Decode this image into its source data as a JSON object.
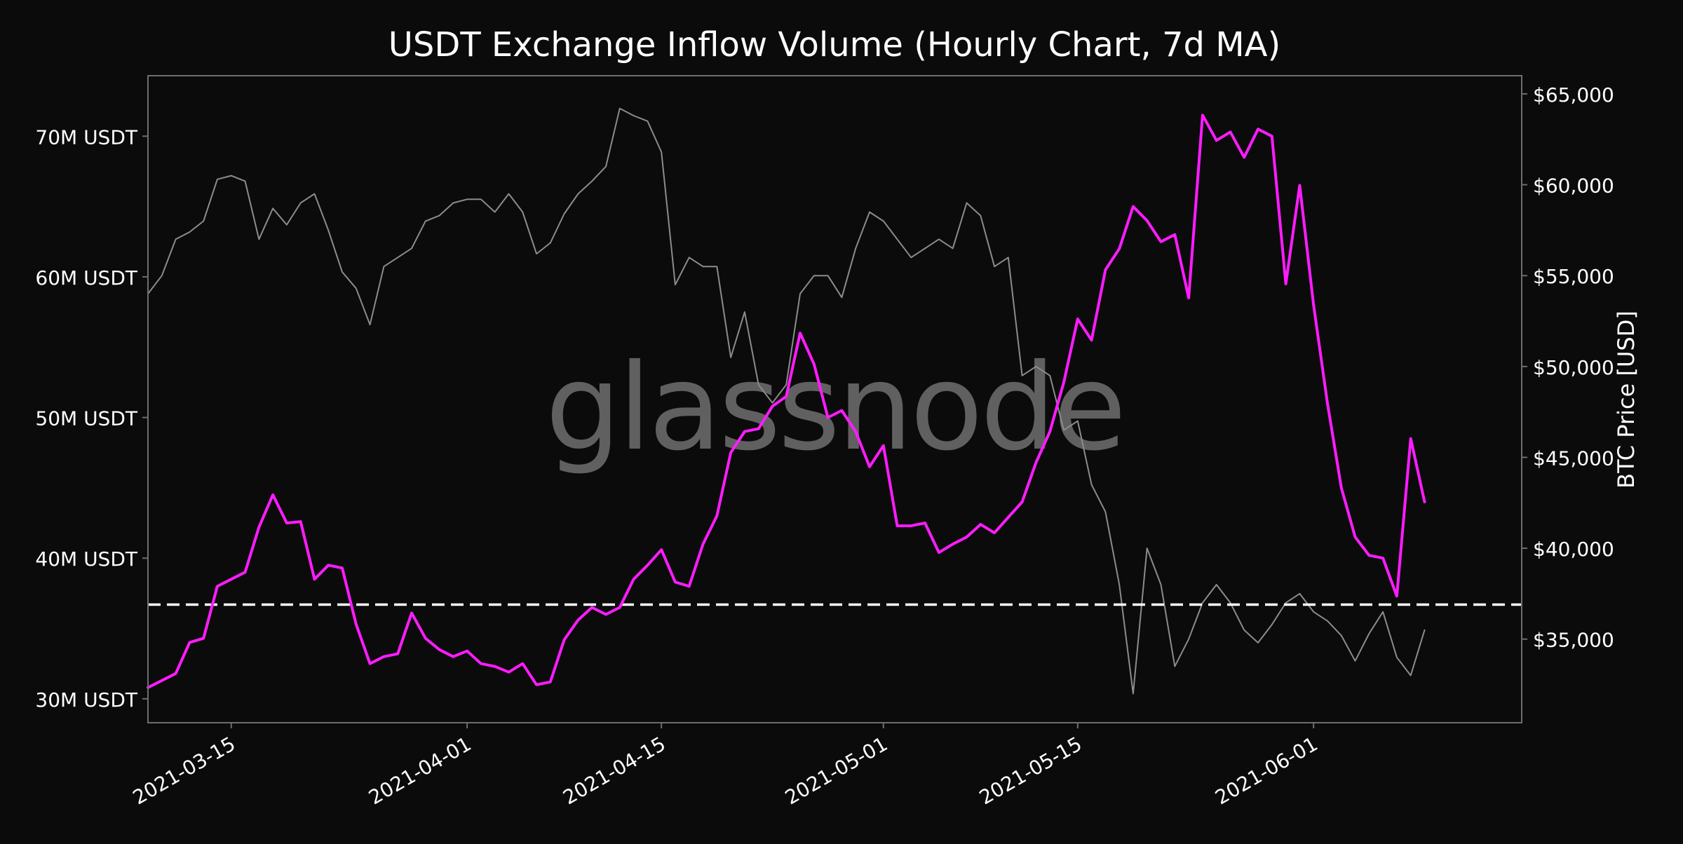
{
  "colors": {
    "background": "#0b0b0b",
    "inflow_line": "#ff1cff",
    "price_line": "#8c8c8c",
    "reference_line": "#ffffff",
    "text": "#ffffff",
    "frame": "#6e6e6e",
    "watermark": "#6a6a6a"
  },
  "watermark": "glassnode",
  "chart_data": {
    "type": "line",
    "title": "USDT Exchange Inflow Volume (Hourly Chart, 7d MA)",
    "ylabel_left": "",
    "ylabel_right": "BTC Price [USD]",
    "xlabel": "",
    "grid": false,
    "legend": "none",
    "x_ticks": [
      "2021-03-15",
      "2021-04-01",
      "2021-04-15",
      "2021-05-01",
      "2021-05-15",
      "2021-06-01"
    ],
    "x_range": [
      "2021-03-09",
      "2021-06-16"
    ],
    "y_left_ticks": [
      {
        "value": 30,
        "label": "30M USDT"
      },
      {
        "value": 40,
        "label": "40M USDT"
      },
      {
        "value": 50,
        "label": "50M USDT"
      },
      {
        "value": 60,
        "label": "60M USDT"
      },
      {
        "value": 70,
        "label": "70M USDT"
      }
    ],
    "y_left_range": [
      28.3,
      74.3
    ],
    "y_right_ticks": [
      {
        "value": 35000,
        "label": "$35,000"
      },
      {
        "value": 40000,
        "label": "$40,000"
      },
      {
        "value": 45000,
        "label": "$45,000"
      },
      {
        "value": 50000,
        "label": "$50,000"
      },
      {
        "value": 55000,
        "label": "$55,000"
      },
      {
        "value": 60000,
        "label": "$60,000"
      },
      {
        "value": 65000,
        "label": "$65,000"
      }
    ],
    "y_right_range": [
      30400,
      66000
    ],
    "reference_line": {
      "value": 36.7,
      "style": "dashed"
    },
    "series": [
      {
        "axis": "left",
        "unit": "M USDT",
        "x": [
          "2021-03-09",
          "2021-03-11",
          "2021-03-12",
          "2021-03-13",
          "2021-03-14",
          "2021-03-15",
          "2021-03-16",
          "2021-03-17",
          "2021-03-18",
          "2021-03-19",
          "2021-03-20",
          "2021-03-21",
          "2021-03-22",
          "2021-03-23",
          "2021-03-24",
          "2021-03-25",
          "2021-03-26",
          "2021-03-27",
          "2021-03-28",
          "2021-03-29",
          "2021-03-30",
          "2021-03-31",
          "2021-04-01",
          "2021-04-02",
          "2021-04-03",
          "2021-04-04",
          "2021-04-05",
          "2021-04-06",
          "2021-04-07",
          "2021-04-08",
          "2021-04-09",
          "2021-04-10",
          "2021-04-11",
          "2021-04-12",
          "2021-04-13",
          "2021-04-14",
          "2021-04-15",
          "2021-04-16",
          "2021-04-17",
          "2021-04-18",
          "2021-04-19",
          "2021-04-20",
          "2021-04-21",
          "2021-04-22",
          "2021-04-23",
          "2021-04-24",
          "2021-04-25",
          "2021-04-26",
          "2021-04-27",
          "2021-04-28",
          "2021-04-29",
          "2021-04-30",
          "2021-05-01",
          "2021-05-02",
          "2021-05-03",
          "2021-05-04",
          "2021-05-05",
          "2021-05-06",
          "2021-05-07",
          "2021-05-08",
          "2021-05-09",
          "2021-05-10",
          "2021-05-11",
          "2021-05-12",
          "2021-05-13",
          "2021-05-14",
          "2021-05-15",
          "2021-05-16",
          "2021-05-17",
          "2021-05-18",
          "2021-05-19",
          "2021-05-20",
          "2021-05-21",
          "2021-05-22",
          "2021-05-23",
          "2021-05-24",
          "2021-05-25",
          "2021-05-26",
          "2021-05-27",
          "2021-05-28",
          "2021-05-29",
          "2021-05-30",
          "2021-05-31",
          "2021-06-01",
          "2021-06-02",
          "2021-06-03",
          "2021-06-04",
          "2021-06-05",
          "2021-06-06",
          "2021-06-07",
          "2021-06-08",
          "2021-06-09"
        ],
        "values": [
          30.8,
          31.8,
          34.0,
          34.3,
          38.0,
          38.5,
          39.0,
          42.2,
          44.5,
          42.5,
          42.6,
          38.5,
          39.5,
          39.3,
          35.3,
          32.5,
          33.0,
          33.2,
          36.1,
          34.3,
          33.5,
          33.0,
          33.4,
          32.5,
          32.3,
          31.9,
          32.5,
          31.0,
          31.2,
          34.2,
          35.6,
          36.5,
          36.0,
          36.5,
          38.5,
          39.5,
          40.6,
          38.3,
          38.0,
          41.0,
          43.0,
          47.5,
          49.0,
          49.2,
          50.8,
          51.5,
          56.0,
          53.8,
          50.0,
          50.5,
          49.0,
          46.5,
          48.0,
          42.3,
          42.3,
          42.5,
          40.4,
          41.0,
          41.5,
          42.4,
          41.8,
          42.9,
          44.0,
          46.8,
          49.0,
          52.5,
          57.0,
          55.5,
          60.5,
          62.0,
          65.0,
          64.0,
          62.5,
          63.0,
          58.5,
          71.5,
          69.7,
          70.3,
          68.5,
          70.5,
          70.0,
          59.5,
          66.5,
          58.0,
          51.0,
          45.0,
          41.5,
          40.2,
          40.0,
          37.3,
          48.5,
          44.0
        ]
      },
      {
        "axis": "right",
        "unit": "USD",
        "x": [
          "2021-03-09",
          "2021-03-10",
          "2021-03-11",
          "2021-03-12",
          "2021-03-13",
          "2021-03-14",
          "2021-03-15",
          "2021-03-16",
          "2021-03-17",
          "2021-03-18",
          "2021-03-19",
          "2021-03-20",
          "2021-03-21",
          "2021-03-22",
          "2021-03-23",
          "2021-03-24",
          "2021-03-25",
          "2021-03-26",
          "2021-03-27",
          "2021-03-28",
          "2021-03-29",
          "2021-03-30",
          "2021-03-31",
          "2021-04-01",
          "2021-04-02",
          "2021-04-03",
          "2021-04-04",
          "2021-04-05",
          "2021-04-06",
          "2021-04-07",
          "2021-04-08",
          "2021-04-09",
          "2021-04-10",
          "2021-04-11",
          "2021-04-12",
          "2021-04-13",
          "2021-04-14",
          "2021-04-15",
          "2021-04-16",
          "2021-04-17",
          "2021-04-18",
          "2021-04-19",
          "2021-04-20",
          "2021-04-21",
          "2021-04-22",
          "2021-04-23",
          "2021-04-24",
          "2021-04-25",
          "2021-04-26",
          "2021-04-27",
          "2021-04-28",
          "2021-04-29",
          "2021-04-30",
          "2021-05-01",
          "2021-05-02",
          "2021-05-03",
          "2021-05-04",
          "2021-05-05",
          "2021-05-06",
          "2021-05-07",
          "2021-05-08",
          "2021-05-09",
          "2021-05-10",
          "2021-05-11",
          "2021-05-12",
          "2021-05-13",
          "2021-05-14",
          "2021-05-15",
          "2021-05-16",
          "2021-05-17",
          "2021-05-18",
          "2021-05-19",
          "2021-05-20",
          "2021-05-21",
          "2021-05-22",
          "2021-05-23",
          "2021-05-24",
          "2021-05-25",
          "2021-05-26",
          "2021-05-27",
          "2021-05-28",
          "2021-05-29",
          "2021-05-30",
          "2021-05-31",
          "2021-06-01",
          "2021-06-02",
          "2021-06-03",
          "2021-06-04",
          "2021-06-05",
          "2021-06-06",
          "2021-06-07",
          "2021-06-08",
          "2021-06-09"
        ],
        "values": [
          54000,
          55000,
          57000,
          57400,
          58000,
          60300,
          60500,
          60200,
          57000,
          58700,
          57800,
          59000,
          59500,
          57500,
          55200,
          54300,
          52300,
          55500,
          56000,
          56500,
          58000,
          58300,
          59000,
          59200,
          59200,
          58500,
          59500,
          58500,
          56200,
          56800,
          58400,
          59500,
          60200,
          61000,
          64200,
          63800,
          63500,
          61800,
          54500,
          56000,
          55500,
          55500,
          50500,
          53000,
          49000,
          48000,
          49000,
          54000,
          55000,
          55000,
          53800,
          56500,
          58500,
          58000,
          57000,
          56000,
          56500,
          57000,
          56500,
          59000,
          58300,
          55500,
          56000,
          49500,
          50000,
          49500,
          46500,
          47000,
          43500,
          42000,
          38000,
          32000,
          40000,
          38000,
          33500,
          35000,
          37000,
          38000,
          37000,
          35500,
          34800,
          35800,
          37000,
          37500,
          36500,
          36000,
          35200,
          33800,
          35300,
          36500,
          34000,
          33000,
          35500
        ]
      }
    ]
  }
}
